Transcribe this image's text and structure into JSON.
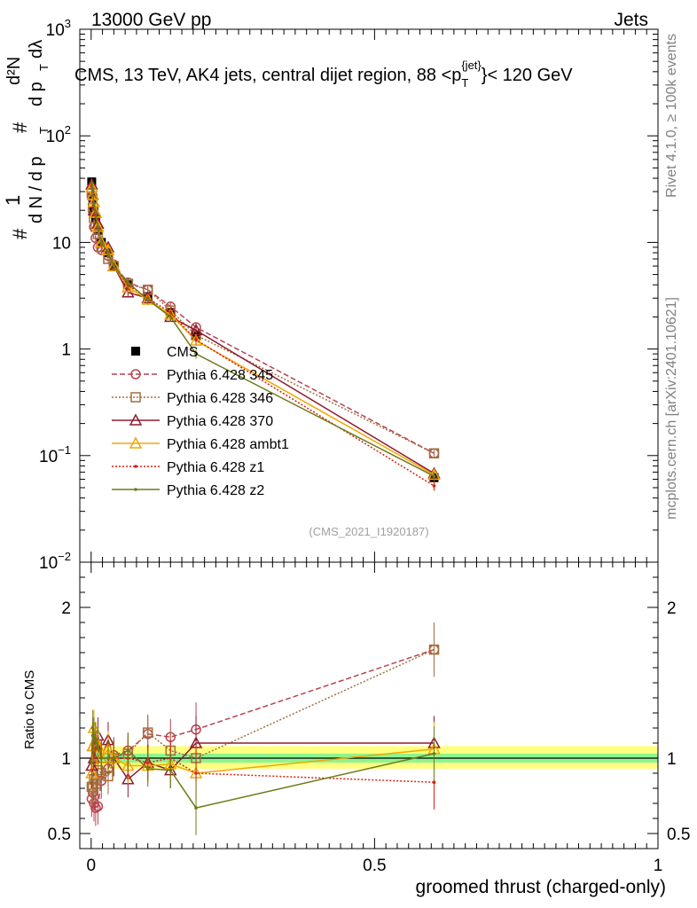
{
  "header": {
    "left": "13000 GeV pp",
    "right": "Jets"
  },
  "side": {
    "top": "Rivet 4.1.0, ≥ 100k events",
    "bottom": "mcplots.cern.ch [arXiv:2401.10621]"
  },
  "chart_data": [
    {
      "type": "line",
      "title": "CMS, 13 TeV, AK4 jets, central dijet region, 88 <p_T^{jet}< 120 GeV",
      "title_parts": {
        "main": "CMS, 13 TeV, AK4 jets, central dijet region, 88 <p",
        "sub": "T",
        "sup": "{jet}",
        "tail": "}< 120 GeV"
      },
      "ylabel": "1/dN/dp_T  d²N/dp_T dλ",
      "ylabel_parts": {
        "hash": "#",
        "one": "1",
        "dN": "d N / d p",
        "T": "T",
        "d2N": "d²N",
        "dpt": "d p",
        "dl": "dλ"
      },
      "yscale": "log",
      "ylim": [
        0.01,
        1000
      ],
      "xlim": [
        -0.02,
        1.0
      ],
      "yticks": [
        {
          "v": 0.01,
          "base": "10",
          "exp": "−2"
        },
        {
          "v": 0.1,
          "base": "10",
          "exp": "−1"
        },
        {
          "v": 1,
          "text": "1"
        },
        {
          "v": 10,
          "text": "10"
        },
        {
          "v": 100,
          "base": "10",
          "exp": "2"
        },
        {
          "v": 1000,
          "base": "10",
          "exp": "3"
        }
      ],
      "watermark": "(CMS_2021_I1920187)",
      "legend_position": "center-left",
      "x": [
        0.001,
        0.003,
        0.005,
        0.008,
        0.012,
        0.018,
        0.03,
        0.04,
        0.065,
        0.1,
        0.14,
        0.185,
        0.605
      ],
      "series": [
        {
          "name": "CMS",
          "color": "#000000",
          "marker": "square",
          "style": "none",
          "values": [
            37,
            26,
            20,
            17,
            13,
            10,
            8.0,
            6.0,
            4.0,
            3.1,
            2.2,
            1.35,
            0.062
          ]
        },
        {
          "name": "Pythia 6.428 345",
          "color": "#b8434f",
          "marker": "circle",
          "style": "dashed",
          "values": [
            27,
            20,
            14,
            11,
            9.0,
            8.5,
            7.5,
            6.2,
            4.2,
            3.6,
            2.5,
            1.6,
            0.105
          ]
        },
        {
          "name": "Pythia 6.428 346",
          "color": "#a26f3e",
          "marker": "square-open",
          "style": "dotted",
          "values": [
            30,
            21,
            17,
            14,
            12,
            9.0,
            7.0,
            6.0,
            4.1,
            3.6,
            2.3,
            1.35,
            0.105
          ]
        },
        {
          "name": "Pythia 6.428 370",
          "color": "#8f1b30",
          "marker": "triangle",
          "style": "solid",
          "values": [
            35,
            28,
            20,
            19,
            15,
            10,
            9.0,
            6.0,
            3.4,
            3.0,
            2.0,
            1.5,
            0.068
          ]
        },
        {
          "name": "Pythia 6.428 ambt1",
          "color": "#f0a800",
          "marker": "triangle-open",
          "style": "solid",
          "values": [
            33,
            28,
            24,
            19,
            14,
            10,
            8.5,
            6.0,
            3.8,
            2.9,
            2.1,
            1.2,
            0.066
          ]
        },
        {
          "name": "Pythia 6.428 z1",
          "color": "#d81f10",
          "marker": "dot",
          "style": "dotted",
          "values": [
            34,
            30,
            22,
            18,
            14,
            10,
            8.0,
            6.0,
            4.0,
            3.0,
            2.2,
            1.22,
            0.052
          ]
        },
        {
          "name": "Pythia 6.428 z2",
          "color": "#6e7a18",
          "marker": "dot",
          "style": "solid",
          "values": [
            36,
            31,
            23,
            19,
            14,
            10,
            8.0,
            6.0,
            4.2,
            2.9,
            2.0,
            0.9,
            0.064
          ]
        }
      ]
    },
    {
      "type": "line",
      "ylabel": "Ratio to CMS",
      "xlabel": "groomed thrust (charged-only)",
      "ylim": [
        0.4,
        2.3
      ],
      "yticks": [
        0.5,
        1,
        2
      ],
      "xticks": [
        0,
        0.5,
        1
      ],
      "xtick_labels": [
        "0",
        "0.5",
        "1"
      ],
      "band": {
        "x": [
          0.0,
          1.0
        ],
        "inner": [
          0.97,
          1.03
        ],
        "outer": [
          0.93,
          1.08
        ]
      },
      "x": [
        0.001,
        0.003,
        0.005,
        0.008,
        0.012,
        0.018,
        0.03,
        0.04,
        0.065,
        0.1,
        0.14,
        0.185,
        0.605
      ],
      "series": [
        {
          "name": "Pythia 6.428 345",
          "values": [
            0.73,
            0.77,
            0.7,
            0.67,
            0.68,
            0.85,
            0.93,
            1.02,
            1.05,
            1.16,
            1.14,
            1.19,
            1.72
          ]
        },
        {
          "name": "Pythia 6.428 346",
          "values": [
            0.81,
            0.8,
            0.86,
            0.83,
            0.92,
            0.9,
            0.88,
            1.0,
            1.03,
            1.17,
            1.05,
            1.0,
            1.72
          ]
        },
        {
          "name": "Pythia 6.428 370",
          "values": [
            0.95,
            1.08,
            1.0,
            1.12,
            1.15,
            1.0,
            1.12,
            1.0,
            0.86,
            0.97,
            0.92,
            1.1,
            1.1
          ]
        },
        {
          "name": "Pythia 6.428 ambt1",
          "values": [
            0.9,
            1.08,
            1.2,
            1.12,
            1.08,
            1.0,
            1.06,
            1.0,
            0.95,
            0.95,
            0.96,
            0.9,
            1.06
          ]
        },
        {
          "name": "Pythia 6.428 z1",
          "values": [
            0.92,
            1.15,
            1.1,
            1.06,
            1.08,
            1.0,
            1.0,
            1.0,
            1.0,
            0.97,
            1.0,
            0.9,
            0.84
          ]
        },
        {
          "name": "Pythia 6.428 z2",
          "values": [
            0.97,
            1.2,
            1.15,
            1.12,
            1.08,
            1.0,
            1.0,
            1.0,
            1.05,
            0.93,
            0.92,
            0.67,
            1.03
          ]
        }
      ]
    }
  ]
}
